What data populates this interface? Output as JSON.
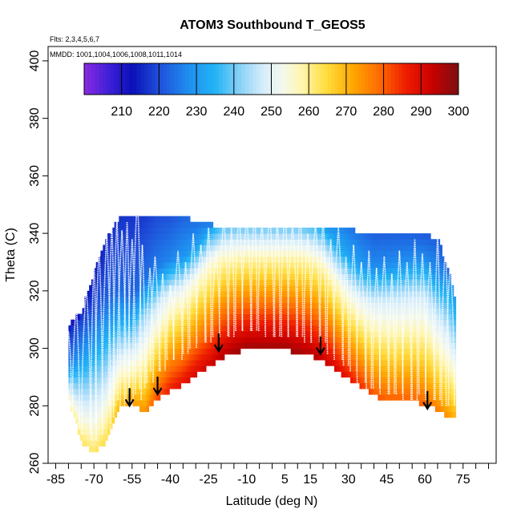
{
  "chart_data": {
    "type": "heatmap",
    "title": "ATOM3 Southbound T_GEOS5",
    "subtitle_flights": "Flts: 2,3,4,5,6,7",
    "subtitle_dates": "MMDD: 1001,1004,1006,1008,1011,1014",
    "xlabel": "Latitude (deg N)",
    "ylabel": "Theta (C)",
    "xlim": [
      -88,
      88
    ],
    "ylim": [
      260,
      405
    ],
    "x_ticks": [
      -85,
      -70,
      -55,
      -40,
      -25,
      -10,
      5,
      15,
      30,
      45,
      60,
      75
    ],
    "y_ticks": [
      260,
      280,
      300,
      320,
      340,
      360,
      380,
      400
    ],
    "colorbar": {
      "range": [
        200,
        300
      ],
      "ticks": [
        210,
        220,
        230,
        240,
        250,
        260,
        270,
        280,
        290,
        300
      ],
      "stops": [
        {
          "v": 200,
          "c": "#8a2be2"
        },
        {
          "v": 207,
          "c": "#3a1fd6"
        },
        {
          "v": 213,
          "c": "#0a10b8"
        },
        {
          "v": 220,
          "c": "#1f4fd8"
        },
        {
          "v": 228,
          "c": "#1f8ff0"
        },
        {
          "v": 235,
          "c": "#22b4f5"
        },
        {
          "v": 242,
          "c": "#8fd3f7"
        },
        {
          "v": 248,
          "c": "#d8eefb"
        },
        {
          "v": 253,
          "c": "#f3f8ec"
        },
        {
          "v": 258,
          "c": "#fff6b0"
        },
        {
          "v": 265,
          "c": "#ffdc3a"
        },
        {
          "v": 272,
          "c": "#ffa500"
        },
        {
          "v": 279,
          "c": "#ff6a00"
        },
        {
          "v": 286,
          "c": "#ee1c00"
        },
        {
          "v": 293,
          "c": "#c80000"
        },
        {
          "v": 300,
          "c": "#7a1010"
        }
      ]
    },
    "field": {
      "lat": [
        -80,
        -75,
        -70,
        -65,
        -60,
        -55,
        -50,
        -45,
        -40,
        -35,
        -30,
        -25,
        -20,
        -15,
        -10,
        -5,
        0,
        5,
        10,
        15,
        20,
        25,
        30,
        35,
        40,
        45,
        50,
        55,
        60,
        65,
        70,
        72
      ],
      "theta_bottom": [
        283,
        268,
        264,
        268,
        280,
        282,
        278,
        283,
        286,
        288,
        291,
        294,
        297,
        299,
        300,
        300,
        300,
        300,
        299,
        298,
        296,
        293,
        290,
        287,
        284,
        282,
        282,
        282,
        281,
        279,
        276,
        276
      ],
      "theta_top": [
        308,
        312,
        326,
        338,
        345,
        346,
        345,
        345,
        345,
        345,
        344,
        343,
        341,
        341,
        341,
        342,
        342,
        342,
        342,
        342,
        342,
        342,
        341,
        340,
        340,
        340,
        340,
        340,
        339,
        338,
        325,
        315
      ],
      "trop_theta": [
        300,
        305,
        308,
        312,
        315,
        312,
        318,
        322,
        325,
        326,
        330,
        335,
        338,
        338,
        338,
        338,
        338,
        338,
        338,
        337,
        335,
        330,
        326,
        323,
        322,
        323,
        324,
        325,
        325,
        320,
        318,
        315
      ],
      "t_surface": [
        258,
        262,
        262,
        264,
        270,
        272,
        274,
        282,
        286,
        288,
        290,
        291,
        294,
        296,
        297,
        297,
        297,
        297,
        296,
        295,
        293,
        290,
        287,
        284,
        281,
        280,
        280,
        280,
        279,
        276,
        273,
        270
      ],
      "t_low_tropo": [
        226,
        228,
        230,
        232,
        234,
        238,
        242,
        246,
        250,
        252,
        254,
        255,
        256,
        257,
        258,
        258,
        258,
        258,
        258,
        258,
        257,
        255,
        252,
        250,
        248,
        247,
        246,
        246,
        246,
        244,
        240,
        236
      ],
      "t_top": [
        210,
        212,
        214,
        216,
        217,
        217,
        218,
        220,
        221,
        223,
        224,
        226,
        228,
        230,
        230,
        230,
        230,
        230,
        230,
        230,
        229,
        228,
        226,
        224,
        222,
        222,
        222,
        222,
        222,
        222,
        222,
        222
      ]
    },
    "arrows": [
      {
        "lat": -56,
        "theta": 284
      },
      {
        "lat": -45,
        "theta": 288
      },
      {
        "lat": -21,
        "theta": 303
      },
      {
        "lat": 19,
        "theta": 302
      },
      {
        "lat": 61,
        "theta": 283
      }
    ],
    "profiles": [
      {
        "lat": -80,
        "theta_min": 286,
        "theta_max": 306
      },
      {
        "lat": -77,
        "theta_min": 272,
        "theta_max": 316
      },
      {
        "lat": -73,
        "theta_min": 270,
        "theta_max": 322
      },
      {
        "lat": -70,
        "theta_min": 268,
        "theta_max": 330
      },
      {
        "lat": -68,
        "theta_min": 274,
        "theta_max": 335
      },
      {
        "lat": -65,
        "theta_min": 270,
        "theta_max": 340
      },
      {
        "lat": -63,
        "theta_min": 280,
        "theta_max": 343
      },
      {
        "lat": -61,
        "theta_min": 276,
        "theta_max": 345
      },
      {
        "lat": -59,
        "theta_min": 282,
        "theta_max": 341
      },
      {
        "lat": -57,
        "theta_min": 280,
        "theta_max": 344
      },
      {
        "lat": -55,
        "theta_min": 284,
        "theta_max": 338
      },
      {
        "lat": -53,
        "theta_min": 282,
        "theta_max": 353
      },
      {
        "lat": -51,
        "theta_min": 286,
        "theta_max": 336
      },
      {
        "lat": -48,
        "theta_min": 288,
        "theta_max": 328
      },
      {
        "lat": -46,
        "theta_min": 292,
        "theta_max": 332
      },
      {
        "lat": -43,
        "theta_min": 292,
        "theta_max": 326
      },
      {
        "lat": -40,
        "theta_min": 296,
        "theta_max": 322
      },
      {
        "lat": -37,
        "theta_min": 296,
        "theta_max": 334
      },
      {
        "lat": -34,
        "theta_min": 298,
        "theta_max": 330
      },
      {
        "lat": -31,
        "theta_min": 300,
        "theta_max": 340
      },
      {
        "lat": -28,
        "theta_min": 302,
        "theta_max": 336
      },
      {
        "lat": -25,
        "theta_min": 302,
        "theta_max": 342
      },
      {
        "lat": -22,
        "theta_min": 304,
        "theta_max": 334
      },
      {
        "lat": -19,
        "theta_min": 304,
        "theta_max": 346
      },
      {
        "lat": -16,
        "theta_min": 304,
        "theta_max": 342
      },
      {
        "lat": -13,
        "theta_min": 306,
        "theta_max": 348
      },
      {
        "lat": -10,
        "theta_min": 306,
        "theta_max": 346
      },
      {
        "lat": -7,
        "theta_min": 306,
        "theta_max": 349
      },
      {
        "lat": -4,
        "theta_min": 306,
        "theta_max": 344
      },
      {
        "lat": -1,
        "theta_min": 304,
        "theta_max": 348
      },
      {
        "lat": 2,
        "theta_min": 304,
        "theta_max": 345
      },
      {
        "lat": 5,
        "theta_min": 304,
        "theta_max": 349
      },
      {
        "lat": 8,
        "theta_min": 304,
        "theta_max": 343
      },
      {
        "lat": 11,
        "theta_min": 304,
        "theta_max": 349
      },
      {
        "lat": 14,
        "theta_min": 302,
        "theta_max": 340
      },
      {
        "lat": 17,
        "theta_min": 302,
        "theta_max": 344
      },
      {
        "lat": 20,
        "theta_min": 302,
        "theta_max": 346
      },
      {
        "lat": 23,
        "theta_min": 298,
        "theta_max": 338
      },
      {
        "lat": 26,
        "theta_min": 296,
        "theta_max": 342
      },
      {
        "lat": 29,
        "theta_min": 294,
        "theta_max": 332
      },
      {
        "lat": 32,
        "theta_min": 292,
        "theta_max": 336
      },
      {
        "lat": 35,
        "theta_min": 288,
        "theta_max": 330
      },
      {
        "lat": 38,
        "theta_min": 286,
        "theta_max": 334
      },
      {
        "lat": 41,
        "theta_min": 286,
        "theta_max": 328
      },
      {
        "lat": 44,
        "theta_min": 284,
        "theta_max": 332
      },
      {
        "lat": 47,
        "theta_min": 284,
        "theta_max": 326
      },
      {
        "lat": 50,
        "theta_min": 284,
        "theta_max": 334
      },
      {
        "lat": 53,
        "theta_min": 282,
        "theta_max": 330
      },
      {
        "lat": 56,
        "theta_min": 282,
        "theta_max": 338
      },
      {
        "lat": 59,
        "theta_min": 284,
        "theta_max": 333
      },
      {
        "lat": 62,
        "theta_min": 282,
        "theta_max": 330
      },
      {
        "lat": 65,
        "theta_min": 282,
        "theta_max": 339
      },
      {
        "lat": 68,
        "theta_min": 280,
        "theta_max": 336
      },
      {
        "lat": 70,
        "theta_min": 280,
        "theta_max": 330
      }
    ]
  }
}
